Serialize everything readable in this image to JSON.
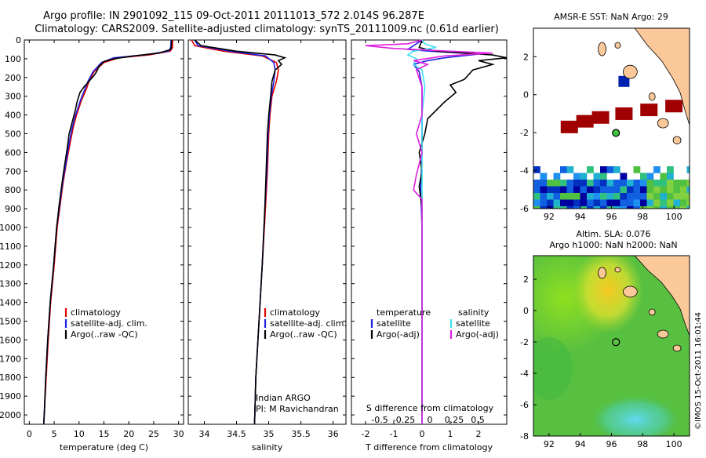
{
  "title_line1": "Argo profile: IN 2901092_115 09-Oct-2011 20111013_572 2.014S 96.287E",
  "title_line2": "Climatology: CARS2009. Satellite-adjusted climatology: synTS_20111009.nc (0.61d earlier)",
  "colors": {
    "climatology": "#e00000",
    "satellite": "#2020e0",
    "argo": "#000000",
    "sat_salinity": "#40e0f0",
    "argo_salinity": "#e020e0",
    "land": "#fbc89a",
    "sea_green": "#40c040"
  },
  "chart_data": [
    {
      "type": "line",
      "id": "temperature",
      "xlabel": "temperature (deg C)",
      "xlim": [
        -1,
        31
      ],
      "ylim": [
        2050,
        0
      ],
      "xticks": [
        0,
        5,
        10,
        15,
        20,
        25,
        30
      ],
      "xtick_labels": [
        "0",
        "5",
        "10",
        "15",
        "20",
        "25",
        "30"
      ],
      "yticks": [
        0,
        100,
        200,
        300,
        400,
        500,
        600,
        700,
        800,
        900,
        1000,
        1100,
        1200,
        1300,
        1400,
        1500,
        1600,
        1700,
        1800,
        1900,
        2000
      ],
      "ytick_labels": [
        "0",
        "100",
        "200",
        "300",
        "400",
        "500",
        "600",
        "700",
        "800",
        "900",
        "1000",
        "1100",
        "1200",
        "1300",
        "1400",
        "1500",
        "1600",
        "1700",
        "1800",
        "1900",
        "2000"
      ],
      "legend": [
        "climatology",
        "satellite-adj. clim.",
        "Argo(..raw -QC)"
      ],
      "series": [
        {
          "name": "climatology",
          "color": "#e00000",
          "points": [
            [
              28.8,
              0
            ],
            [
              28.8,
              40
            ],
            [
              28.3,
              60
            ],
            [
              24,
              80
            ],
            [
              18,
              95
            ],
            [
              15,
              120
            ],
            [
              13,
              170
            ],
            [
              12,
              220
            ],
            [
              11.5,
              260
            ],
            [
              10.5,
              320
            ],
            [
              9.5,
              400
            ],
            [
              8.8,
              470
            ],
            [
              8.2,
              550
            ],
            [
              7.5,
              650
            ],
            [
              6.8,
              760
            ],
            [
              6.2,
              880
            ],
            [
              5.6,
              1000
            ],
            [
              5,
              1200
            ],
            [
              4.3,
              1400
            ],
            [
              3.8,
              1600
            ],
            [
              3.4,
              1800
            ],
            [
              3,
              2000
            ],
            [
              2.9,
              2050
            ]
          ]
        },
        {
          "name": "satellite-adj. clim.",
          "color": "#2020e0",
          "points": [
            [
              28.5,
              0
            ],
            [
              28.4,
              40
            ],
            [
              28,
              60
            ],
            [
              23,
              80
            ],
            [
              17,
              95
            ],
            [
              14.5,
              120
            ],
            [
              12.8,
              170
            ],
            [
              11.8,
              220
            ],
            [
              11.2,
              260
            ],
            [
              10.3,
              320
            ],
            [
              9.3,
              400
            ],
            [
              8.6,
              470
            ],
            [
              8,
              550
            ],
            [
              7.4,
              650
            ],
            [
              6.7,
              760
            ],
            [
              6.1,
              880
            ],
            [
              5.5,
              1000
            ],
            [
              4.9,
              1200
            ],
            [
              4.2,
              1400
            ],
            [
              3.7,
              1600
            ],
            [
              3.3,
              1800
            ],
            [
              3,
              2000
            ],
            [
              2.9,
              2050
            ]
          ]
        },
        {
          "name": "Argo(..raw -QC)",
          "color": "#000000",
          "points": [
            [
              28.6,
              0
            ],
            [
              28.5,
              50
            ],
            [
              26,
              70
            ],
            [
              21,
              85
            ],
            [
              17,
              100
            ],
            [
              15,
              115
            ],
            [
              14,
              140
            ],
            [
              13.5,
              170
            ],
            [
              13,
              190
            ],
            [
              12,
              220
            ],
            [
              11,
              250
            ],
            [
              10.2,
              280
            ],
            [
              9.6,
              330
            ],
            [
              9.2,
              380
            ],
            [
              8.6,
              440
            ],
            [
              8,
              500
            ],
            [
              7.6,
              580
            ],
            [
              7.2,
              650
            ],
            [
              6.8,
              720
            ],
            [
              6.4,
              800
            ],
            [
              6,
              880
            ],
            [
              5.5,
              1000
            ],
            [
              4.9,
              1200
            ],
            [
              4.2,
              1400
            ],
            [
              3.7,
              1600
            ],
            [
              3.3,
              1800
            ],
            [
              3,
              2000
            ],
            [
              2.9,
              2050
            ]
          ]
        }
      ]
    },
    {
      "type": "line",
      "id": "salinity",
      "xlabel": "salinity",
      "xlim": [
        33.75,
        36.2
      ],
      "ylim": [
        2050,
        0
      ],
      "xticks": [
        34,
        34.5,
        35,
        35.5,
        36
      ],
      "xtick_labels": [
        "34",
        "34.5",
        "35",
        "35.5",
        "36"
      ],
      "legend": [
        "climatology",
        "satellite-adj. clim.",
        "Argo(..raw -QC)"
      ],
      "annotations": [
        "Indian ARGO",
        "PI: M Ravichandran"
      ],
      "series": [
        {
          "name": "climatology",
          "color": "#e00000",
          "points": [
            [
              33.8,
              0
            ],
            [
              33.85,
              30
            ],
            [
              34.3,
              60
            ],
            [
              34.9,
              85
            ],
            [
              35.12,
              120
            ],
            [
              35.15,
              160
            ],
            [
              35.12,
              220
            ],
            [
              35.05,
              300
            ],
            [
              35.02,
              400
            ],
            [
              35,
              500
            ],
            [
              34.98,
              700
            ],
            [
              34.95,
              900
            ],
            [
              34.9,
              1200
            ],
            [
              34.85,
              1500
            ],
            [
              34.8,
              1800
            ],
            [
              34.78,
              2050
            ]
          ]
        },
        {
          "name": "satellite-adj. clim.",
          "color": "#2020e0",
          "points": [
            [
              33.85,
              0
            ],
            [
              33.9,
              30
            ],
            [
              34.4,
              60
            ],
            [
              34.95,
              85
            ],
            [
              35.08,
              120
            ],
            [
              35.1,
              160
            ],
            [
              35.08,
              220
            ],
            [
              35.04,
              300
            ],
            [
              35.01,
              400
            ],
            [
              34.99,
              500
            ],
            [
              34.97,
              700
            ],
            [
              34.94,
              900
            ],
            [
              34.9,
              1200
            ],
            [
              34.85,
              1500
            ],
            [
              34.8,
              1800
            ],
            [
              34.78,
              2050
            ]
          ]
        },
        {
          "name": "Argo(..raw -QC)",
          "color": "#000000",
          "points": [
            [
              33.85,
              0
            ],
            [
              33.95,
              30
            ],
            [
              34.5,
              60
            ],
            [
              35.1,
              80
            ],
            [
              35.25,
              95
            ],
            [
              35.15,
              110
            ],
            [
              35.2,
              130
            ],
            [
              35.1,
              160
            ],
            [
              35.05,
              220
            ],
            [
              35.03,
              300
            ],
            [
              35,
              400
            ],
            [
              34.98,
              500
            ],
            [
              34.97,
              600
            ],
            [
              34.96,
              700
            ],
            [
              34.94,
              900
            ],
            [
              34.9,
              1200
            ],
            [
              34.85,
              1500
            ],
            [
              34.8,
              1800
            ],
            [
              34.78,
              2050
            ]
          ]
        }
      ]
    },
    {
      "type": "line",
      "id": "difference",
      "xlabel": "T difference from climatology",
      "xlabel_top": "S difference from climatology",
      "xlim": [
        -2.5,
        3
      ],
      "ylim": [
        2050,
        0
      ],
      "xticks": [
        -2,
        -1,
        0,
        1,
        2
      ],
      "xtick_labels": [
        "-2",
        "-1",
        "0",
        "1",
        "2"
      ],
      "s_ticks": [
        -0.5,
        -0.25,
        0,
        0.25,
        0.5
      ],
      "s_tick_labels": [
        "-0.5",
        "-0.25",
        "0",
        "0.25",
        "0.5"
      ],
      "legend_title_t": "temperature",
      "legend_title_s": "salinity",
      "legend_t": [
        "satellite",
        "Argo(-adj)"
      ],
      "legend_s": [
        "satellite",
        "Argo(-adj)"
      ],
      "series": [
        {
          "name": "satellite",
          "group": "temperature",
          "color": "#2020e0",
          "points": [
            [
              0,
              0
            ],
            [
              -0.2,
              20
            ],
            [
              -0.5,
              50
            ],
            [
              0.3,
              60
            ],
            [
              2,
              75
            ],
            [
              0.8,
              95
            ],
            [
              0.2,
              110
            ],
            [
              -0.3,
              130
            ],
            [
              -0.1,
              170
            ],
            [
              0,
              250
            ],
            [
              0,
              400
            ],
            [
              0,
              600
            ],
            [
              -0.05,
              800
            ],
            [
              0,
              1000
            ],
            [
              0,
              1500
            ],
            [
              0,
              2050
            ]
          ]
        },
        {
          "name": "Argo(-adj)",
          "group": "temperature",
          "color": "#000000",
          "points": [
            [
              0,
              0
            ],
            [
              -0.1,
              40
            ],
            [
              0.5,
              60
            ],
            [
              2.5,
              80
            ],
            [
              3,
              95
            ],
            [
              2,
              110
            ],
            [
              2.5,
              130
            ],
            [
              1.8,
              160
            ],
            [
              1.5,
              210
            ],
            [
              1,
              240
            ],
            [
              1.2,
              280
            ],
            [
              0.8,
              330
            ],
            [
              0.2,
              420
            ],
            [
              0.1,
              500
            ],
            [
              -0.1,
              600
            ],
            [
              0,
              700
            ],
            [
              -0.1,
              780
            ],
            [
              0,
              900
            ],
            [
              0,
              1100
            ],
            [
              0,
              1500
            ],
            [
              0,
              2050
            ]
          ]
        },
        {
          "name": "satellite",
          "group": "salinity",
          "color": "#40e0f0",
          "points": [
            [
              0,
              0
            ],
            [
              0.1,
              20
            ],
            [
              0.5,
              40
            ],
            [
              -0.3,
              60
            ],
            [
              -0.5,
              80
            ],
            [
              -0.2,
              100
            ],
            [
              -0.3,
              130
            ],
            [
              0,
              160
            ],
            [
              0.1,
              250
            ],
            [
              0,
              400
            ],
            [
              0,
              600
            ],
            [
              0,
              800
            ],
            [
              0,
              1000
            ],
            [
              0,
              2050
            ]
          ]
        },
        {
          "name": "Argo(-adj)",
          "group": "salinity",
          "color": "#e020e0",
          "points": [
            [
              0,
              0
            ],
            [
              -0.5,
              20
            ],
            [
              -2,
              30
            ],
            [
              -1,
              45
            ],
            [
              1,
              60
            ],
            [
              2.5,
              70
            ],
            [
              0.8,
              85
            ],
            [
              -0.3,
              110
            ],
            [
              0.2,
              130
            ],
            [
              -0.2,
              160
            ],
            [
              0,
              250
            ],
            [
              0,
              400
            ],
            [
              -0.2,
              500
            ],
            [
              0,
              600
            ],
            [
              -0.2,
              720
            ],
            [
              -0.3,
              800
            ],
            [
              0,
              850
            ],
            [
              0,
              2050
            ]
          ]
        }
      ]
    },
    {
      "type": "heatmap",
      "id": "sst_map",
      "title": "AMSR-E SST: NaN Argo: 29",
      "xlim": [
        91,
        101
      ],
      "ylim": [
        -6,
        3.5
      ],
      "xticks": [
        92,
        94,
        96,
        98,
        100
      ],
      "xtick_labels": [
        "92",
        "94",
        "96",
        "98",
        "100"
      ],
      "yticks": [
        -6,
        -4,
        -2,
        0,
        2
      ],
      "ytick_labels": [
        "-6",
        "-4",
        "-2",
        "0",
        "2"
      ],
      "argo_position": {
        "lon": 96.287,
        "lat": -2.014
      },
      "dark_red_blocks": [
        [
          93.3,
          -1.7
        ],
        [
          94.3,
          -1.4
        ],
        [
          95.3,
          -1.2
        ],
        [
          96.8,
          -1.0
        ],
        [
          98.4,
          -0.8
        ],
        [
          100.0,
          -0.6
        ]
      ],
      "blue_block": [
        96.8,
        0.7
      ]
    },
    {
      "type": "heatmap",
      "id": "sla_map",
      "title_line1": "Altim. SLA: 0.076",
      "title_line2": "Argo h1000: NaN h2000: NaN",
      "xlim": [
        91,
        101
      ],
      "ylim": [
        -8,
        3.5
      ],
      "xticks": [
        92,
        94,
        96,
        98,
        100
      ],
      "xtick_labels": [
        "92",
        "94",
        "96",
        "98",
        "100"
      ],
      "yticks": [
        -8,
        -6,
        -4,
        -2,
        0,
        2
      ],
      "ytick_labels": [
        "-8",
        "-6",
        "-4",
        "-2",
        "0",
        "2"
      ],
      "argo_position": {
        "lon": 96.287,
        "lat": -2.014
      }
    }
  ],
  "side_label": "©IMOS 15-Oct-2011 16:01:44"
}
